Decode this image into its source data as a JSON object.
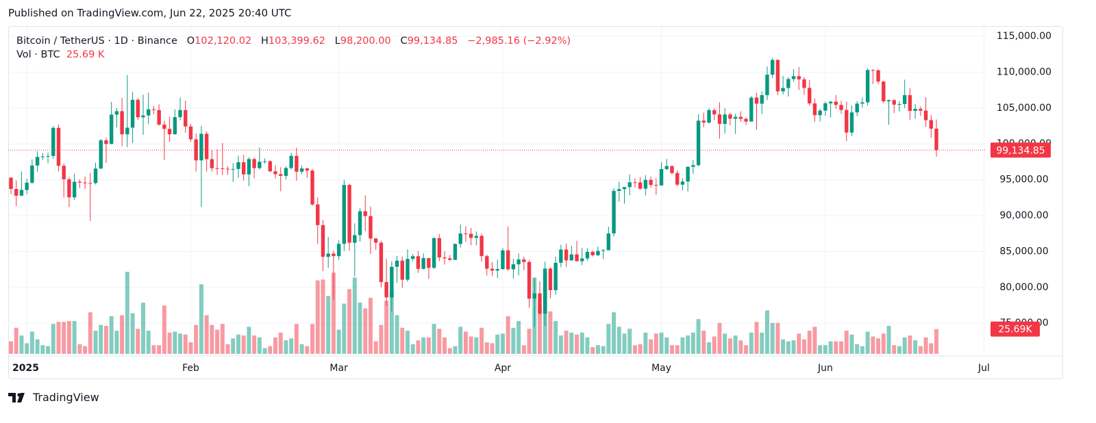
{
  "header": {
    "published": "Published on TradingView.com, Jun 22, 2025 20:40 UTC"
  },
  "legend": {
    "symbol": "Bitcoin / TetherUS · 1D · Binance",
    "o_key": "O",
    "o": "102,120.02",
    "h_key": "H",
    "h": "103,399.62",
    "l_key": "L",
    "l": "98,200.00",
    "c_key": "C",
    "c": "99,134.85",
    "change": "−2,985.16 (−2.92%)",
    "vol_key": "Vol · BTC",
    "vol": "25.69 K"
  },
  "chart_data": {
    "type": "candlestick",
    "up_color": "#089981",
    "down_color": "#f23645",
    "ylim": [
      70725,
      116240
    ],
    "yticks": [
      {
        "value": 75000,
        "label": "75,000.00"
      },
      {
        "value": 80000,
        "label": "80,000.00"
      },
      {
        "value": 85000,
        "label": "85,000.00"
      },
      {
        "value": 90000,
        "label": "90,000.00"
      },
      {
        "value": 95000,
        "label": "95,000.00"
      },
      {
        "value": 100000,
        "label": "100,000.00"
      },
      {
        "value": 105000,
        "label": "105,000.00"
      },
      {
        "value": 110000,
        "label": "110,000.00"
      },
      {
        "value": 115000,
        "label": "115,000.00"
      }
    ],
    "xticks": [
      {
        "value": 3,
        "label": "2025"
      },
      {
        "value": 34,
        "label": "Feb"
      },
      {
        "value": 62,
        "label": "Mar"
      },
      {
        "value": 93,
        "label": "Apr"
      },
      {
        "value": 123,
        "label": "May"
      },
      {
        "value": 154,
        "label": "Jun"
      },
      {
        "value": 184,
        "label": "Jul"
      }
    ],
    "grid": true,
    "price_label": "99,134.85",
    "volume_label": "25.69K",
    "ohlc": [
      [
        95284,
        95350,
        93008,
        93716
      ],
      [
        93716,
        94903,
        91317,
        92780
      ],
      [
        92780,
        96150,
        92729,
        93576
      ],
      [
        93576,
        95150,
        92991,
        94591
      ],
      [
        94591,
        97839,
        94392,
        96984
      ],
      [
        96984,
        98976,
        96100,
        98174
      ],
      [
        98174,
        98734,
        97735,
        98236
      ],
      [
        98236,
        98813,
        97291,
        98314
      ],
      [
        98314,
        102480,
        97915,
        102235
      ],
      [
        102235,
        102724,
        96181,
        96954
      ],
      [
        96954,
        97258,
        92500,
        95060
      ],
      [
        95060,
        95382,
        91203,
        92552
      ],
      [
        92552,
        95836,
        92206,
        94726
      ],
      [
        94726,
        95050,
        93831,
        94599
      ],
      [
        94599,
        95450,
        93711,
        94545
      ],
      [
        94545,
        95940,
        89256,
        94536
      ],
      [
        94536,
        97371,
        94346,
        96560
      ],
      [
        96560,
        100681,
        96500,
        100497
      ],
      [
        100497,
        100866,
        97335,
        99987
      ],
      [
        99987,
        105865,
        99950,
        104077
      ],
      [
        104077,
        104988,
        102277,
        104556
      ],
      [
        104556,
        106422,
        99651,
        101331
      ],
      [
        101331,
        109588,
        99550,
        102260
      ],
      [
        102260,
        107240,
        100119,
        106143
      ],
      [
        106143,
        106394,
        103339,
        103706
      ],
      [
        103706,
        106850,
        101262,
        103960
      ],
      [
        103960,
        107120,
        102750,
        104819
      ],
      [
        104819,
        105286,
        104106,
        104714
      ],
      [
        104714,
        105500,
        102520,
        102682
      ],
      [
        102682,
        103221,
        97777,
        102087
      ],
      [
        102087,
        103784,
        100273,
        101332
      ],
      [
        101332,
        104800,
        101328,
        103733
      ],
      [
        103733,
        106457,
        103318,
        104722
      ],
      [
        104722,
        106012,
        101560,
        102429
      ],
      [
        102429,
        102783,
        100279,
        100635
      ],
      [
        100635,
        101456,
        96150,
        97700
      ],
      [
        97700,
        102500,
        91231,
        101406
      ],
      [
        101406,
        101732,
        96150,
        97871
      ],
      [
        97871,
        99120,
        96155,
        96615
      ],
      [
        96615,
        99194,
        95676,
        96593
      ],
      [
        96593,
        100137,
        95620,
        96529
      ],
      [
        96529,
        96880,
        95688,
        96482
      ],
      [
        96482,
        97323,
        94713,
        96500
      ],
      [
        96500,
        98345,
        95257,
        97437
      ],
      [
        97437,
        98478,
        94876,
        95748
      ],
      [
        95748,
        98119,
        94088,
        97885
      ],
      [
        97885,
        98076,
        95217,
        96623
      ],
      [
        96623,
        99475,
        96400,
        97508
      ],
      [
        97508,
        97970,
        97226,
        97580
      ],
      [
        97580,
        97732,
        96046,
        96175
      ],
      [
        96175,
        97046,
        95205,
        95773
      ],
      [
        95773,
        96753,
        93388,
        95539
      ],
      [
        95539,
        96899,
        95028,
        96635
      ],
      [
        96635,
        98766,
        96426,
        98334
      ],
      [
        98334,
        99475,
        94871,
        96125
      ],
      [
        96125,
        96980,
        95770,
        96578
      ],
      [
        96578,
        96671,
        95270,
        96273
      ],
      [
        96273,
        96503,
        91350,
        91552
      ],
      [
        91552,
        92540,
        86050,
        88680
      ],
      [
        88680,
        89414,
        82256,
        84250
      ],
      [
        84250,
        87000,
        82716,
        84709
      ],
      [
        84709,
        85120,
        78258,
        84350
      ],
      [
        84350,
        86558,
        83824,
        86064
      ],
      [
        86064,
        95000,
        85050,
        94270
      ],
      [
        94270,
        94416,
        85117,
        86220
      ],
      [
        86220,
        88912,
        81529,
        87281
      ],
      [
        87281,
        90998,
        86379,
        90606
      ],
      [
        90606,
        92810,
        87836,
        89931
      ],
      [
        89931,
        91283,
        84667,
        86801
      ],
      [
        86801,
        86897,
        85248,
        86222
      ],
      [
        86222,
        86500,
        80000,
        80734
      ],
      [
        80734,
        83955,
        77459,
        78595
      ],
      [
        78595,
        83617,
        76606,
        82862
      ],
      [
        82862,
        84358,
        80635,
        83722
      ],
      [
        83722,
        84300,
        79939,
        81066
      ],
      [
        81066,
        85309,
        80766,
        83969
      ],
      [
        83969,
        84672,
        83639,
        84343
      ],
      [
        84343,
        85051,
        82017,
        82580
      ],
      [
        82580,
        84756,
        82456,
        84075
      ],
      [
        84075,
        84100,
        81179,
        82718
      ],
      [
        82718,
        87021,
        82569,
        86854
      ],
      [
        86854,
        87443,
        83647,
        84167
      ],
      [
        84167,
        85049,
        83175,
        84044
      ],
      [
        84044,
        84513,
        83675,
        83832
      ],
      [
        83832,
        86094,
        83794,
        86054
      ],
      [
        86054,
        88765,
        85541,
        87499
      ],
      [
        87499,
        88542,
        86346,
        87471
      ],
      [
        87471,
        88292,
        85862,
        86900
      ],
      [
        86900,
        87786,
        85837,
        87177
      ],
      [
        87177,
        87515,
        83585,
        84353
      ],
      [
        84353,
        84567,
        81634,
        82597
      ],
      [
        82597,
        83505,
        81566,
        82334
      ],
      [
        82334,
        83870,
        81293,
        82548
      ],
      [
        82548,
        85487,
        82429,
        85159
      ],
      [
        85159,
        88500,
        82320,
        82516
      ],
      [
        82516,
        83998,
        81211,
        83213
      ],
      [
        83213,
        84720,
        81659,
        83889
      ],
      [
        83889,
        84266,
        82379,
        83537
      ],
      [
        83537,
        83817,
        77153,
        78430
      ],
      [
        78430,
        81243,
        74508,
        79163
      ],
      [
        79163,
        80867,
        76239,
        76322
      ],
      [
        76322,
        83588,
        74620,
        82615
      ],
      [
        82615,
        82753,
        78464,
        79607
      ],
      [
        79607,
        84300,
        78970,
        83423
      ],
      [
        83423,
        85905,
        82792,
        85276
      ],
      [
        85276,
        86100,
        82829,
        83760
      ],
      [
        83760,
        85799,
        83678,
        84591
      ],
      [
        84591,
        86496,
        83600,
        83643
      ],
      [
        83643,
        85500,
        83111,
        84030
      ],
      [
        84030,
        85470,
        83736,
        84947
      ],
      [
        84947,
        85132,
        84303,
        84474
      ],
      [
        84474,
        85677,
        84364,
        85077
      ],
      [
        85077,
        85320,
        83949,
        85179
      ],
      [
        85179,
        88460,
        85143,
        87516
      ],
      [
        87516,
        93817,
        87084,
        93442
      ],
      [
        93442,
        94696,
        91935,
        93691
      ],
      [
        93691,
        94000,
        91660,
        93980
      ],
      [
        93980,
        95758,
        92856,
        94638
      ],
      [
        94638,
        95199,
        93870,
        94630
      ],
      [
        94630,
        95369,
        93602,
        93755
      ],
      [
        93755,
        95630,
        92800,
        94980
      ],
      [
        94980,
        95470,
        93858,
        94284
      ],
      [
        94284,
        95200,
        92910,
        94207
      ],
      [
        94207,
        97437,
        94153,
        96492
      ],
      [
        96492,
        97895,
        96350,
        96911
      ],
      [
        96911,
        96961,
        95727,
        95936
      ],
      [
        95936,
        96300,
        94101,
        94314
      ],
      [
        94314,
        95198,
        93514,
        94748
      ],
      [
        94748,
        96889,
        93377,
        96803
      ],
      [
        96803,
        97732,
        95825,
        97032
      ],
      [
        97032,
        104145,
        96876,
        103241
      ],
      [
        103241,
        104361,
        102316,
        102970
      ],
      [
        102970,
        104984,
        102818,
        104696
      ],
      [
        104696,
        105000,
        103300,
        104107
      ],
      [
        104107,
        105819,
        100718,
        102791
      ],
      [
        102791,
        104976,
        101429,
        104103
      ],
      [
        104103,
        104356,
        102602,
        103507
      ],
      [
        103507,
        104192,
        101383,
        103764
      ],
      [
        103764,
        104550,
        103100,
        103489
      ],
      [
        103489,
        103709,
        102612,
        103113
      ],
      [
        103113,
        106660,
        103105,
        106455
      ],
      [
        106455,
        107109,
        102000,
        105606
      ],
      [
        105606,
        107320,
        104184,
        106791
      ],
      [
        106791,
        110797,
        106100,
        109644
      ],
      [
        109644,
        111980,
        109177,
        111696
      ],
      [
        111696,
        111800,
        106800,
        107317
      ],
      [
        107317,
        109474,
        106890,
        107791
      ],
      [
        107791,
        109313,
        106600,
        109035
      ],
      [
        109035,
        110422,
        108670,
        109440
      ],
      [
        109440,
        110718,
        107517,
        108994
      ],
      [
        108994,
        109310,
        106835,
        107802
      ],
      [
        107802,
        108910,
        105322,
        105641
      ],
      [
        105641,
        106325,
        103068,
        103999
      ],
      [
        103999,
        104900,
        103100,
        104638
      ],
      [
        104638,
        105900,
        103909,
        105652
      ],
      [
        105652,
        105944,
        103705,
        105882
      ],
      [
        105882,
        106813,
        104880,
        105432
      ],
      [
        105432,
        105999,
        104172,
        104731
      ],
      [
        104731,
        105909,
        100372,
        101575
      ],
      [
        101575,
        105333,
        101095,
        104390
      ],
      [
        104390,
        105973,
        103863,
        105615
      ],
      [
        105615,
        106488,
        105080,
        105793
      ],
      [
        105793,
        110530,
        105318,
        110295
      ],
      [
        110295,
        110400,
        108331,
        110257
      ],
      [
        110257,
        110400,
        108316,
        108686
      ],
      [
        108686,
        108813,
        105671,
        105929
      ],
      [
        105929,
        106182,
        102664,
        106091
      ],
      [
        106091,
        106221,
        104300,
        105472
      ],
      [
        105472,
        105980,
        104493,
        105553
      ],
      [
        105553,
        108952,
        104987,
        106796
      ],
      [
        106796,
        107771,
        103371,
        104601
      ],
      [
        104601,
        105550,
        103500,
        104884
      ],
      [
        104884,
        105219,
        103900,
        104632
      ],
      [
        104632,
        106524,
        102345,
        103310
      ],
      [
        103310,
        104000,
        100837,
        102120
      ],
      [
        102120.02,
        103399.62,
        98200,
        99134.85
      ]
    ],
    "volume": [
      13000,
      27000,
      19000,
      11000,
      23000,
      15000,
      9000,
      8000,
      31000,
      33000,
      33000,
      34000,
      34000,
      10000,
      8000,
      43000,
      24000,
      30000,
      29000,
      39000,
      24000,
      40000,
      85000,
      42000,
      26000,
      53000,
      24000,
      9000,
      9000,
      50000,
      22000,
      23000,
      21000,
      20000,
      12000,
      30000,
      72000,
      40000,
      30000,
      25000,
      31000,
      10000,
      16000,
      20000,
      19000,
      28000,
      19000,
      17000,
      6000,
      8000,
      17000,
      22000,
      14000,
      16000,
      31000,
      10000,
      8000,
      31000,
      76000,
      77000,
      60000,
      84000,
      25000,
      52000,
      67000,
      79000,
      53000,
      47000,
      58000,
      13000,
      30000,
      55000,
      64000,
      40000,
      27000,
      24000,
      10000,
      14000,
      17000,
      17000,
      31000,
      26000,
      17000,
      6000,
      8000,
      28000,
      23000,
      18000,
      17000,
      27000,
      12000,
      11000,
      20000,
      21000,
      39000,
      27000,
      34000,
      9000,
      26000,
      79000,
      48000,
      85000,
      44000,
      34000,
      19000,
      24000,
      22000,
      20000,
      22000,
      17000,
      7000,
      9000,
      8000,
      31000,
      43000,
      28000,
      21000,
      26000,
      9000,
      10000,
      22000,
      15000,
      21000,
      22000,
      17000,
      9000,
      9000,
      17000,
      19000,
      22000,
      36000,
      24000,
      12000,
      18000,
      32000,
      21000,
      16000,
      19000,
      14000,
      9000,
      22000,
      33000,
      22000,
      45000,
      32000,
      32000,
      15000,
      13000,
      14000,
      21000,
      15000,
      24000,
      28000,
      9000,
      9000,
      13000,
      13000,
      13000,
      24000,
      20000,
      10000,
      8000,
      23000,
      18000,
      16000,
      21000,
      29000,
      9000,
      8000,
      17000,
      19000,
      14000,
      8000,
      17000,
      11000,
      25690
    ]
  },
  "footer": {
    "brand": "TradingView"
  }
}
